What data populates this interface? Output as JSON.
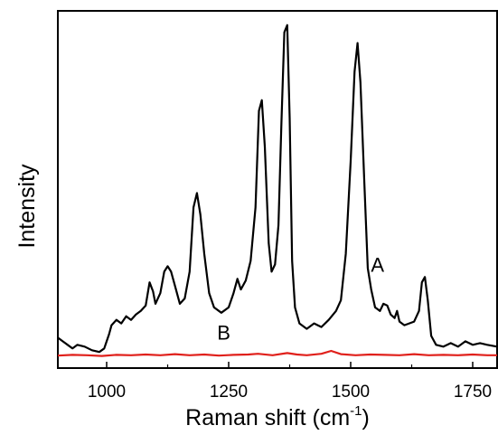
{
  "chart_data": {
    "type": "line",
    "title": "",
    "xlabel": "Raman shift (cm",
    "xlabel_sup": "-1",
    "xlabel_close": ")",
    "ylabel": "Intensity",
    "xlim": [
      900,
      1800
    ],
    "ylim": [
      0,
      100
    ],
    "x_ticks": [
      1000,
      1250,
      1500,
      1750
    ],
    "x_tick_labels": [
      "1000",
      "1250",
      "1500",
      "1750"
    ],
    "y_ticks_shown": false,
    "grid": false,
    "series": [
      {
        "name": "A",
        "color": "#000000",
        "points": [
          [
            900,
            8.5
          ],
          [
            910,
            7.5
          ],
          [
            920,
            6.5
          ],
          [
            930,
            5.5
          ],
          [
            940,
            6.5
          ],
          [
            955,
            6.0
          ],
          [
            970,
            5.0
          ],
          [
            985,
            4.5
          ],
          [
            995,
            5.5
          ],
          [
            1000,
            7.5
          ],
          [
            1005,
            9.5
          ],
          [
            1010,
            12.0
          ],
          [
            1020,
            13.5
          ],
          [
            1030,
            12.5
          ],
          [
            1040,
            14.5
          ],
          [
            1050,
            13.5
          ],
          [
            1060,
            15.0
          ],
          [
            1070,
            16.0
          ],
          [
            1080,
            17.5
          ],
          [
            1088,
            24.0
          ],
          [
            1095,
            21.5
          ],
          [
            1100,
            18.0
          ],
          [
            1110,
            21.0
          ],
          [
            1118,
            27.0
          ],
          [
            1125,
            28.5
          ],
          [
            1132,
            27.0
          ],
          [
            1140,
            23.0
          ],
          [
            1150,
            18.0
          ],
          [
            1160,
            19.5
          ],
          [
            1170,
            27.0
          ],
          [
            1178,
            45.0
          ],
          [
            1185,
            49.0
          ],
          [
            1192,
            43.0
          ],
          [
            1200,
            32.0
          ],
          [
            1210,
            21.0
          ],
          [
            1220,
            17.0
          ],
          [
            1235,
            15.5
          ],
          [
            1250,
            17.0
          ],
          [
            1260,
            21.0
          ],
          [
            1268,
            25.0
          ],
          [
            1275,
            22.0
          ],
          [
            1285,
            24.5
          ],
          [
            1295,
            30.0
          ],
          [
            1305,
            45.0
          ],
          [
            1312,
            72.0
          ],
          [
            1318,
            75.0
          ],
          [
            1324,
            62.0
          ],
          [
            1332,
            35.0
          ],
          [
            1338,
            27.0
          ],
          [
            1345,
            29.0
          ],
          [
            1352,
            40.0
          ],
          [
            1358,
            68.0
          ],
          [
            1364,
            94.0
          ],
          [
            1370,
            96.0
          ],
          [
            1375,
            70.0
          ],
          [
            1380,
            30.0
          ],
          [
            1386,
            17.0
          ],
          [
            1395,
            12.5
          ],
          [
            1410,
            11.0
          ],
          [
            1425,
            12.5
          ],
          [
            1440,
            11.5
          ],
          [
            1455,
            13.5
          ],
          [
            1470,
            16.0
          ],
          [
            1480,
            19.0
          ],
          [
            1490,
            32.0
          ],
          [
            1500,
            58.0
          ],
          [
            1508,
            83.0
          ],
          [
            1514,
            91.0
          ],
          [
            1520,
            80.0
          ],
          [
            1528,
            52.0
          ],
          [
            1535,
            28.0
          ],
          [
            1542,
            22.0
          ],
          [
            1550,
            17.0
          ],
          [
            1560,
            16.0
          ],
          [
            1567,
            18.0
          ],
          [
            1575,
            17.5
          ],
          [
            1582,
            15.0
          ],
          [
            1590,
            14.0
          ],
          [
            1595,
            16.0
          ],
          [
            1600,
            13.0
          ],
          [
            1610,
            12.0
          ],
          [
            1620,
            12.5
          ],
          [
            1630,
            13.0
          ],
          [
            1640,
            16.0
          ],
          [
            1646,
            24.0
          ],
          [
            1652,
            25.5
          ],
          [
            1658,
            19.0
          ],
          [
            1665,
            9.0
          ],
          [
            1675,
            6.5
          ],
          [
            1690,
            6.0
          ],
          [
            1705,
            7.0
          ],
          [
            1720,
            6.0
          ],
          [
            1735,
            7.5
          ],
          [
            1750,
            6.5
          ],
          [
            1765,
            7.0
          ],
          [
            1780,
            6.5
          ],
          [
            1800,
            6.0
          ]
        ]
      },
      {
        "name": "B",
        "color": "#e0201b",
        "points": [
          [
            900,
            3.5
          ],
          [
            930,
            3.7
          ],
          [
            960,
            3.6
          ],
          [
            990,
            3.4
          ],
          [
            1020,
            3.7
          ],
          [
            1050,
            3.6
          ],
          [
            1080,
            3.8
          ],
          [
            1110,
            3.6
          ],
          [
            1140,
            3.9
          ],
          [
            1170,
            3.6
          ],
          [
            1200,
            3.8
          ],
          [
            1230,
            3.5
          ],
          [
            1260,
            3.7
          ],
          [
            1290,
            3.8
          ],
          [
            1310,
            4.0
          ],
          [
            1340,
            3.6
          ],
          [
            1370,
            4.2
          ],
          [
            1390,
            3.8
          ],
          [
            1410,
            3.6
          ],
          [
            1440,
            4.0
          ],
          [
            1460,
            4.8
          ],
          [
            1480,
            3.9
          ],
          [
            1510,
            3.6
          ],
          [
            1540,
            3.8
          ],
          [
            1570,
            3.7
          ],
          [
            1600,
            3.6
          ],
          [
            1630,
            3.9
          ],
          [
            1660,
            3.6
          ],
          [
            1690,
            3.7
          ],
          [
            1720,
            3.6
          ],
          [
            1750,
            3.8
          ],
          [
            1780,
            3.6
          ],
          [
            1800,
            3.6
          ]
        ]
      }
    ],
    "labels": [
      {
        "text": "A",
        "x": 1555,
        "y": 27
      },
      {
        "text": "B",
        "x": 1240,
        "y": 8
      }
    ]
  }
}
